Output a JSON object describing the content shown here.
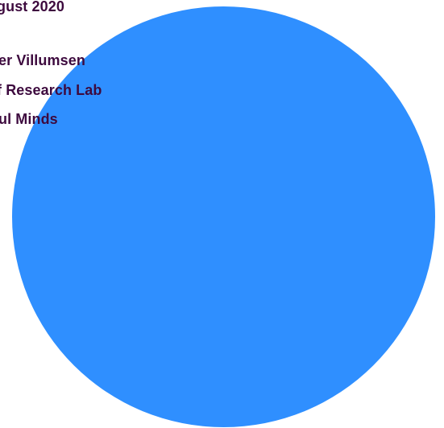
{
  "header": {
    "date": "gust 2020",
    "name": "er Villumsen",
    "lab": "f Research Lab",
    "org": "ul Minds"
  },
  "colors": {
    "text": "#3d0a3e",
    "circle": "#2f8fff",
    "background": "#ffffff"
  }
}
